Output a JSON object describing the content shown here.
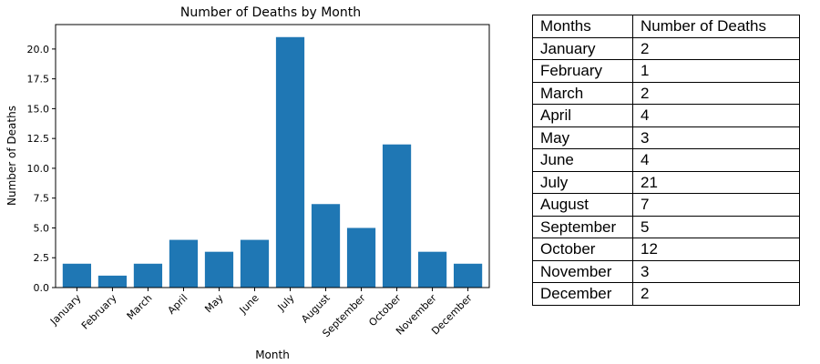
{
  "chart_data": {
    "type": "bar",
    "title": "Number of Deaths by Month",
    "xlabel": "Month",
    "ylabel": "Number of Deaths",
    "categories": [
      "January",
      "February",
      "March",
      "April",
      "May",
      "June",
      "July",
      "August",
      "September",
      "October",
      "November",
      "December"
    ],
    "values": [
      2,
      1,
      2,
      4,
      3,
      4,
      21,
      7,
      5,
      12,
      3,
      2
    ],
    "ylim": [
      0,
      22.05
    ],
    "yticks": [
      "0.0",
      "2.5",
      "5.0",
      "7.5",
      "10.0",
      "12.5",
      "15.0",
      "17.5",
      "20.0"
    ],
    "ytick_values": [
      0,
      2.5,
      5,
      7.5,
      10,
      12.5,
      15,
      17.5,
      20
    ],
    "bar_color": "#1f77b4",
    "grid": false
  },
  "table": {
    "headers": [
      "Months",
      "Number of Deaths"
    ],
    "rows": [
      [
        "January",
        "2"
      ],
      [
        "February",
        "1"
      ],
      [
        "March",
        "2"
      ],
      [
        "April",
        "4"
      ],
      [
        "May",
        "3"
      ],
      [
        "June",
        "4"
      ],
      [
        "July",
        "21"
      ],
      [
        "August",
        "7"
      ],
      [
        "September",
        "5"
      ],
      [
        "October",
        "12"
      ],
      [
        "November",
        "3"
      ],
      [
        "December",
        "2"
      ]
    ]
  }
}
